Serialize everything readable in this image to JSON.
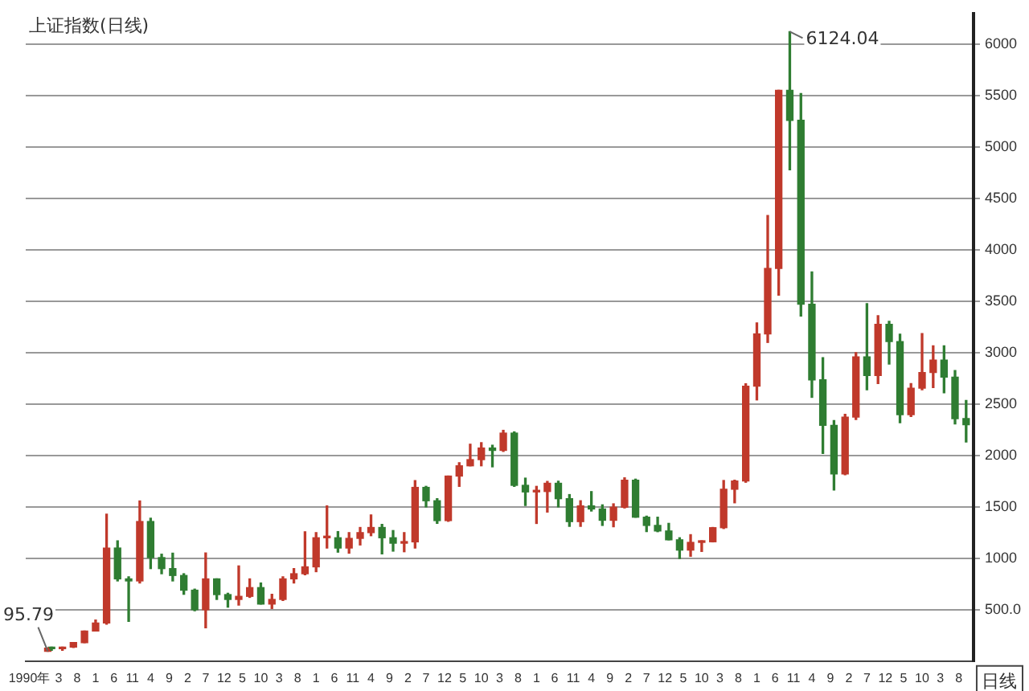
{
  "chart_data": {
    "type": "candlestick",
    "title": "上证指数(日线)",
    "x": [
      "1990-12",
      "1991-01",
      "1991-04",
      "1991-07",
      "1991-10",
      "1992-01",
      "1992-04",
      "1992-07",
      "1992-10",
      "1993-01",
      "1993-04",
      "1993-07",
      "1993-10",
      "1994-01",
      "1994-04",
      "1994-07",
      "1994-10",
      "1995-01",
      "1995-04",
      "1995-07",
      "1995-10",
      "1996-01",
      "1996-04",
      "1996-07",
      "1996-10",
      "1997-01",
      "1997-04",
      "1997-07",
      "1997-10",
      "1998-01",
      "1998-04",
      "1998-07",
      "1998-10",
      "1999-01",
      "1999-04",
      "1999-07",
      "1999-10",
      "2000-01",
      "2000-04",
      "2000-07",
      "2000-10",
      "2001-01",
      "2001-04",
      "2001-07",
      "2001-10",
      "2002-01",
      "2002-04",
      "2002-07",
      "2002-10",
      "2003-01",
      "2003-04",
      "2003-07",
      "2003-10",
      "2004-01",
      "2004-04",
      "2004-07",
      "2004-10",
      "2005-01",
      "2005-04",
      "2005-07",
      "2005-10",
      "2006-01",
      "2006-04",
      "2006-07",
      "2006-10",
      "2007-01",
      "2007-04",
      "2007-07",
      "2007-10",
      "2008-01",
      "2008-04",
      "2008-07",
      "2008-10",
      "2009-01",
      "2009-04",
      "2009-07",
      "2009-10",
      "2010-01",
      "2010-04",
      "2010-07",
      "2010-10",
      "2011-01",
      "2011-04",
      "2011-07",
      "2011-10"
    ],
    "series": [
      {
        "colors": [
          "#c0392b",
          "#2f7d32",
          "#c0392b",
          "#c0392b",
          "#c0392b",
          "#c0392b",
          "#c0392b",
          "#2f7d32",
          "#2f7d32",
          "#c0392b",
          "#2f7d32",
          "#2f7d32",
          "#2f7d32",
          "#2f7d32",
          "#2f7d32",
          "#c0392b",
          "#2f7d32",
          "#2f7d32",
          "#c0392b",
          "#c0392b",
          "#2f7d32",
          "#c0392b",
          "#c0392b",
          "#c0392b",
          "#c0392b",
          "#c0392b",
          "#c0392b",
          "#2f7d32",
          "#c0392b",
          "#c0392b",
          "#c0392b",
          "#2f7d32",
          "#2f7d32",
          "#c0392b",
          "#c0392b",
          "#2f7d32",
          "#2f7d32",
          "#c0392b",
          "#c0392b",
          "#c0392b",
          "#c0392b",
          "#2f7d32",
          "#c0392b",
          "#2f7d32",
          "#2f7d32",
          "#c0392b",
          "#c0392b",
          "#2f7d32",
          "#2f7d32",
          "#c0392b",
          "#2f7d32",
          "#2f7d32",
          "#c0392b",
          "#c0392b",
          "#2f7d32",
          "#2f7d32",
          "#2f7d32",
          "#2f7d32",
          "#2f7d32",
          "#c0392b",
          "#c0392b",
          "#c0392b",
          "#c0392b",
          "#c0392b",
          "#c0392b",
          "#c0392b",
          "#c0392b",
          "#c0392b",
          "#2f7d32",
          "#2f7d32",
          "#2f7d32",
          "#2f7d32",
          "#2f7d32",
          "#c0392b",
          "#c0392b",
          "#2f7d32",
          "#c0392b",
          "#2f7d32",
          "#2f7d32",
          "#c0392b",
          "#c0392b",
          "#c0392b",
          "#2f7d32",
          "#2f7d32",
          "#2f7d32"
        ],
        "ohlc": [
          [
            96,
            128,
            95.79,
            127
          ],
          [
            128,
            135,
            105,
            120
          ],
          [
            120,
            136,
            105,
            136
          ],
          [
            136,
            180,
            133,
            180
          ],
          [
            180,
            292,
            180,
            292
          ],
          [
            293,
            400,
            293,
            370
          ],
          [
            370,
            1429,
            360,
            1100
          ],
          [
            1100,
            1170,
            780,
            800
          ],
          [
            800,
            820,
            386,
            780
          ],
          [
            780,
            1558,
            760,
            1358
          ],
          [
            1358,
            1390,
            900,
            1007
          ],
          [
            1007,
            1040,
            850,
            900
          ],
          [
            900,
            1050,
            780,
            833
          ],
          [
            833,
            850,
            650,
            690
          ],
          [
            690,
            700,
            490,
            500
          ],
          [
            500,
            1052,
            325,
            800
          ],
          [
            800,
            800,
            600,
            647
          ],
          [
            647,
            660,
            525,
            600
          ],
          [
            600,
            926,
            545,
            630
          ],
          [
            630,
            800,
            620,
            715
          ],
          [
            715,
            760,
            555,
            555
          ],
          [
            555,
            650,
            512,
            600
          ],
          [
            600,
            820,
            590,
            800
          ],
          [
            800,
            900,
            760,
            850
          ],
          [
            850,
            1258,
            840,
            917
          ],
          [
            917,
            1250,
            870,
            1200
          ],
          [
            1200,
            1510,
            1100,
            1210
          ],
          [
            1200,
            1260,
            1060,
            1100
          ],
          [
            1100,
            1250,
            1050,
            1194
          ],
          [
            1194,
            1300,
            1130,
            1250
          ],
          [
            1250,
            1422,
            1220,
            1300
          ],
          [
            1300,
            1330,
            1043,
            1200
          ],
          [
            1200,
            1270,
            1070,
            1147
          ],
          [
            1147,
            1250,
            1064,
            1160
          ],
          [
            1160,
            1756,
            1100,
            1690
          ],
          [
            1690,
            1700,
            1500,
            1560
          ],
          [
            1560,
            1580,
            1340,
            1367
          ],
          [
            1367,
            1800,
            1360,
            1800
          ],
          [
            1800,
            1930,
            1700,
            1900
          ],
          [
            1900,
            2110,
            1900,
            1960
          ],
          [
            1960,
            2125,
            1900,
            2073
          ],
          [
            2073,
            2100,
            1890,
            2050
          ],
          [
            2050,
            2245,
            2040,
            2218
          ],
          [
            2218,
            2230,
            1700,
            1710
          ],
          [
            1710,
            1780,
            1514,
            1646
          ],
          [
            1646,
            1700,
            1339,
            1650
          ],
          [
            1650,
            1748,
            1450,
            1730
          ],
          [
            1730,
            1750,
            1500,
            1580
          ],
          [
            1580,
            1620,
            1311,
            1357
          ],
          [
            1357,
            1560,
            1311,
            1510
          ],
          [
            1510,
            1649,
            1460,
            1480
          ],
          [
            1480,
            1520,
            1320,
            1370
          ],
          [
            1370,
            1530,
            1307,
            1497
          ],
          [
            1497,
            1783,
            1490,
            1760
          ],
          [
            1760,
            1770,
            1400,
            1400
          ],
          [
            1400,
            1410,
            1260,
            1320
          ],
          [
            1320,
            1400,
            1259,
            1266
          ],
          [
            1266,
            1340,
            1180,
            1180
          ],
          [
            1180,
            1200,
            998,
            1080
          ],
          [
            1080,
            1230,
            1020,
            1155
          ],
          [
            1155,
            1170,
            1067,
            1161
          ],
          [
            1161,
            1300,
            1160,
            1298
          ],
          [
            1298,
            1757,
            1290,
            1672
          ],
          [
            1672,
            1760,
            1540,
            1752
          ],
          [
            1752,
            2698,
            1740,
            2675
          ],
          [
            2675,
            3290,
            2541,
            3183
          ],
          [
            3183,
            4335,
            3100,
            3820
          ],
          [
            3820,
            5552,
            3560,
            5552
          ],
          [
            5552,
            6124.04,
            4780,
            5261
          ],
          [
            5261,
            5522,
            3357,
            3472
          ],
          [
            3472,
            3786,
            2566,
            2736
          ],
          [
            2736,
            2952,
            2020,
            2293
          ],
          [
            2293,
            2340,
            1664,
            1820
          ],
          [
            1820,
            2400,
            1814,
            2373
          ],
          [
            2373,
            3000,
            2350,
            2959
          ],
          [
            2959,
            3478,
            2640,
            2779
          ],
          [
            2779,
            3361,
            2700,
            3277
          ],
          [
            3277,
            3306,
            2890,
            3109
          ],
          [
            3109,
            3181,
            2319,
            2398
          ],
          [
            2398,
            2700,
            2380,
            2655
          ],
          [
            2655,
            3186,
            2640,
            2808
          ],
          [
            2808,
            3067,
            2661,
            2928
          ],
          [
            2928,
            3067,
            2610,
            2762
          ],
          [
            2762,
            2826,
            2307,
            2359
          ],
          [
            2359,
            2536,
            2132,
            2300
          ]
        ]
      }
    ],
    "xlim": [
      "1990-06",
      "2011-12"
    ],
    "xticks": [
      {
        "value": "1990-07",
        "label": "1990年"
      },
      {
        "value": "1991-03",
        "label": "3"
      },
      {
        "value": "1991-08",
        "label": "8"
      },
      {
        "value": "1992-01",
        "label": "1"
      },
      {
        "value": "1992-06",
        "label": "6"
      },
      {
        "value": "1992-11",
        "label": "11"
      },
      {
        "value": "1993-04",
        "label": "4"
      },
      {
        "value": "1993-09",
        "label": "9"
      },
      {
        "value": "1994-02",
        "label": "2"
      },
      {
        "value": "1994-07",
        "label": "7"
      },
      {
        "value": "1994-12",
        "label": "12"
      },
      {
        "value": "1995-05",
        "label": "5"
      },
      {
        "value": "1995-10",
        "label": "10"
      },
      {
        "value": "1996-03",
        "label": "3"
      },
      {
        "value": "1996-08",
        "label": "8"
      },
      {
        "value": "1997-01",
        "label": "1"
      },
      {
        "value": "1997-06",
        "label": "6"
      },
      {
        "value": "1997-11",
        "label": "11"
      },
      {
        "value": "1998-04",
        "label": "4"
      },
      {
        "value": "1998-09",
        "label": "9"
      },
      {
        "value": "1999-02",
        "label": "2"
      },
      {
        "value": "1999-07",
        "label": "7"
      },
      {
        "value": "1999-12",
        "label": "12"
      },
      {
        "value": "2000-05",
        "label": "5"
      },
      {
        "value": "2000-10",
        "label": "10"
      },
      {
        "value": "2001-03",
        "label": "3"
      },
      {
        "value": "2001-08",
        "label": "8"
      },
      {
        "value": "2002-01",
        "label": "1"
      },
      {
        "value": "2002-06",
        "label": "6"
      },
      {
        "value": "2002-11",
        "label": "11"
      },
      {
        "value": "2003-04",
        "label": "4"
      },
      {
        "value": "2003-09",
        "label": "9"
      },
      {
        "value": "2004-02",
        "label": "2"
      },
      {
        "value": "2004-07",
        "label": "7"
      },
      {
        "value": "2004-12",
        "label": "12"
      },
      {
        "value": "2005-05",
        "label": "5"
      },
      {
        "value": "2005-10",
        "label": "10"
      },
      {
        "value": "2006-03",
        "label": "3"
      },
      {
        "value": "2006-08",
        "label": "8"
      },
      {
        "value": "2007-01",
        "label": "1"
      },
      {
        "value": "2007-06",
        "label": "6"
      },
      {
        "value": "2007-11",
        "label": "11"
      },
      {
        "value": "2008-04",
        "label": "4"
      },
      {
        "value": "2008-09",
        "label": "9"
      },
      {
        "value": "2009-02",
        "label": "2"
      },
      {
        "value": "2009-07",
        "label": "7"
      },
      {
        "value": "2009-12",
        "label": "12"
      },
      {
        "value": "2010-05",
        "label": "5"
      },
      {
        "value": "2010-10",
        "label": "10"
      },
      {
        "value": "2011-03",
        "label": "3"
      },
      {
        "value": "2011-08",
        "label": "8"
      }
    ],
    "ylim": [
      0,
      6300
    ],
    "yticks": [
      {
        "value": 500,
        "label": "500.0"
      },
      1000,
      1500,
      2000,
      2500,
      3000,
      3500,
      4000,
      4500,
      5000,
      5500,
      6000
    ],
    "grid": "y",
    "annotations": [
      {
        "text": "6124.04",
        "x": "2007-10",
        "y": 6124.04
      },
      {
        "text": "95.79",
        "x": "1990-12",
        "y": 95.79
      },
      "日线"
    ]
  }
}
